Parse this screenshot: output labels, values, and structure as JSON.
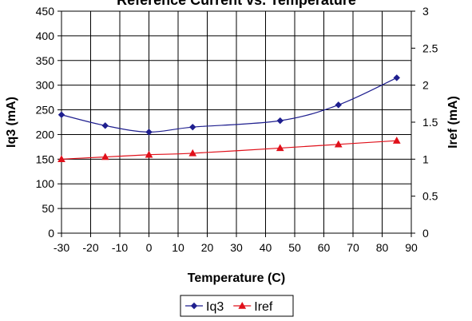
{
  "chart_data": {
    "type": "line",
    "title": "Reference Current vs. Temperature",
    "xlabel": "Temperature (C)",
    "ylabel_left": "Iq3 (mA)",
    "ylabel_right": "Iref (mA)",
    "xlim": [
      -30,
      90
    ],
    "x_ticks": [
      -30,
      -20,
      -10,
      0,
      10,
      20,
      30,
      40,
      50,
      60,
      70,
      80,
      90
    ],
    "ylim_left": [
      0,
      450
    ],
    "y_ticks_left": [
      0,
      50,
      100,
      150,
      200,
      250,
      300,
      350,
      400,
      450
    ],
    "ylim_right": [
      0,
      3
    ],
    "y_ticks_right": [
      0,
      0.5,
      1,
      1.5,
      2,
      2.5,
      3
    ],
    "grid": true,
    "legend_position": "bottom-center",
    "series": [
      {
        "name": "Iq3",
        "axis": "left",
        "color": "#1f1f8f",
        "marker": "diamond",
        "x": [
          -30,
          -15,
          0,
          15,
          45,
          65,
          85
        ],
        "y": [
          240,
          218,
          205,
          215,
          228,
          260,
          315
        ]
      },
      {
        "name": "Iref",
        "axis": "right",
        "color": "#e0101a",
        "marker": "triangle",
        "x": [
          -30,
          -15,
          0,
          15,
          45,
          65,
          85
        ],
        "y": [
          1.0,
          1.03,
          1.06,
          1.08,
          1.15,
          1.2,
          1.25
        ]
      }
    ]
  }
}
